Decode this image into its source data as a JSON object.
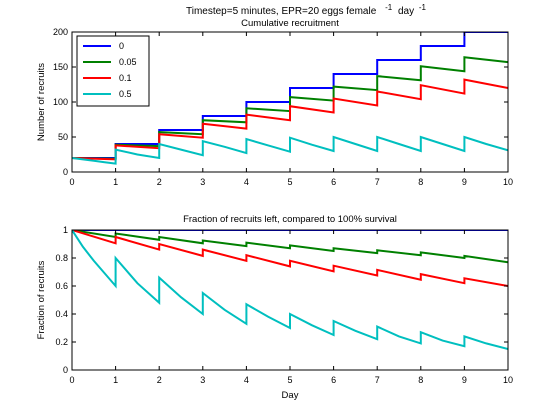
{
  "figure": {
    "title_line1": "Timestep=5 minutes, EPR=20 eggs female",
    "title_superscript1": "-1",
    "title_mid": "day",
    "title_superscript2": "-1"
  },
  "colors": {
    "0": "#0000ff",
    "0.05": "#008000",
    "0.1": "#ff0000",
    "0.5": "#00bfbf"
  },
  "chart_data": [
    {
      "type": "line",
      "title": "Cumulative recruitment",
      "xlabel": "",
      "ylabel": "Number of recruits",
      "xlim": [
        0,
        10
      ],
      "ylim": [
        0,
        200
      ],
      "xticks": [
        "0",
        "1",
        "2",
        "3",
        "4",
        "5",
        "6",
        "7",
        "8",
        "9",
        "10"
      ],
      "yticks": [
        "0",
        "50",
        "100",
        "150",
        "200"
      ],
      "legend": {
        "placement": "top-left",
        "entries": [
          "0",
          "0.05",
          "0.1",
          "0.5"
        ]
      },
      "grid": false,
      "series": [
        {
          "name": "0",
          "color": "#0000ff",
          "points": [
            [
              0,
              20
            ],
            [
              1,
              20
            ],
            [
              1,
              40
            ],
            [
              2,
              40
            ],
            [
              2,
              60
            ],
            [
              3,
              60
            ],
            [
              3,
              80
            ],
            [
              4,
              80
            ],
            [
              4,
              100
            ],
            [
              5,
              100
            ],
            [
              5,
              120
            ],
            [
              6,
              120
            ],
            [
              6,
              140
            ],
            [
              7,
              140
            ],
            [
              7,
              160
            ],
            [
              8,
              160
            ],
            [
              8,
              180
            ],
            [
              9,
              180
            ],
            [
              9,
              200
            ],
            [
              10,
              200
            ]
          ]
        },
        {
          "name": "0.05",
          "color": "#008000",
          "points": [
            [
              0,
              20
            ],
            [
              1,
              19
            ],
            [
              1,
              39
            ],
            [
              2,
              37
            ],
            [
              2,
              57
            ],
            [
              3,
              54
            ],
            [
              3,
              74
            ],
            [
              4,
              71
            ],
            [
              4,
              91
            ],
            [
              5,
              87
            ],
            [
              5,
              107
            ],
            [
              6,
              102
            ],
            [
              6,
              122
            ],
            [
              7,
              117
            ],
            [
              7,
              137
            ],
            [
              8,
              131
            ],
            [
              8,
              151
            ],
            [
              9,
              144
            ],
            [
              9,
              164
            ],
            [
              10,
              157
            ]
          ]
        },
        {
          "name": "0.1",
          "color": "#ff0000",
          "points": [
            [
              0,
              20
            ],
            [
              1,
              18
            ],
            [
              1,
              38
            ],
            [
              2,
              34
            ],
            [
              2,
              54
            ],
            [
              3,
              49
            ],
            [
              3,
              69
            ],
            [
              4,
              62
            ],
            [
              4,
              82
            ],
            [
              5,
              74
            ],
            [
              5,
              94
            ],
            [
              6,
              85
            ],
            [
              6,
              105
            ],
            [
              7,
              95
            ],
            [
              7,
              115
            ],
            [
              8,
              104
            ],
            [
              8,
              124
            ],
            [
              9,
              112
            ],
            [
              9,
              132
            ],
            [
              10,
              120
            ]
          ]
        },
        {
          "name": "0.5",
          "color": "#00bfbf",
          "points": [
            [
              0,
              20
            ],
            [
              0.25,
              18
            ],
            [
              0.5,
              16
            ],
            [
              0.75,
              14
            ],
            [
              1,
              12
            ],
            [
              1,
              32
            ],
            [
              1.5,
              25
            ],
            [
              2,
              20
            ],
            [
              2,
              40
            ],
            [
              2.5,
              32
            ],
            [
              3,
              24
            ],
            [
              3,
              44
            ],
            [
              3.5,
              36
            ],
            [
              4,
              27
            ],
            [
              4,
              47
            ],
            [
              4.5,
              38
            ],
            [
              5,
              29
            ],
            [
              5,
              49
            ],
            [
              5.5,
              39
            ],
            [
              6,
              30
            ],
            [
              6,
              50
            ],
            [
              6.5,
              40
            ],
            [
              7,
              30
            ],
            [
              7,
              50
            ],
            [
              7.5,
              40
            ],
            [
              8,
              30
            ],
            [
              8,
              50
            ],
            [
              8.5,
              40
            ],
            [
              9,
              30
            ],
            [
              9,
              50
            ],
            [
              9.5,
              40
            ],
            [
              10,
              31
            ]
          ]
        }
      ]
    },
    {
      "type": "line",
      "title": "Fraction of recruits left, compared to 100% survival",
      "xlabel": "Day",
      "ylabel": "Fraction of recruits",
      "xlim": [
        0,
        10
      ],
      "ylim": [
        0,
        1
      ],
      "xticks": [
        "0",
        "1",
        "2",
        "3",
        "4",
        "5",
        "6",
        "7",
        "8",
        "9",
        "10"
      ],
      "yticks": [
        "0",
        "0.2",
        "0.4",
        "0.6",
        "0.8",
        "1"
      ],
      "grid": false,
      "series": [
        {
          "name": "0",
          "color": "#0000ff",
          "points": [
            [
              0,
              1
            ],
            [
              10,
              1
            ]
          ]
        },
        {
          "name": "0.05",
          "color": "#008000",
          "points": [
            [
              0,
              1
            ],
            [
              1,
              0.95
            ],
            [
              1,
              0.975
            ],
            [
              2,
              0.93
            ],
            [
              2,
              0.95
            ],
            [
              3,
              0.905
            ],
            [
              3,
              0.925
            ],
            [
              4,
              0.885
            ],
            [
              4,
              0.91
            ],
            [
              5,
              0.87
            ],
            [
              5,
              0.89
            ],
            [
              6,
              0.85
            ],
            [
              6,
              0.87
            ],
            [
              7,
              0.835
            ],
            [
              7,
              0.855
            ],
            [
              8,
              0.82
            ],
            [
              8,
              0.84
            ],
            [
              9,
              0.8
            ],
            [
              9,
              0.815
            ],
            [
              10,
              0.77
            ]
          ]
        },
        {
          "name": "0.1",
          "color": "#ff0000",
          "points": [
            [
              0,
              1
            ],
            [
              1,
              0.905
            ],
            [
              1,
              0.95
            ],
            [
              2,
              0.86
            ],
            [
              2,
              0.9
            ],
            [
              3,
              0.815
            ],
            [
              3,
              0.86
            ],
            [
              4,
              0.78
            ],
            [
              4,
              0.82
            ],
            [
              5,
              0.74
            ],
            [
              5,
              0.78
            ],
            [
              6,
              0.705
            ],
            [
              6,
              0.745
            ],
            [
              7,
              0.675
            ],
            [
              7,
              0.715
            ],
            [
              8,
              0.645
            ],
            [
              8,
              0.685
            ],
            [
              9,
              0.62
            ],
            [
              9,
              0.655
            ],
            [
              10,
              0.6
            ]
          ]
        },
        {
          "name": "0.5",
          "color": "#00bfbf",
          "points": [
            [
              0,
              1
            ],
            [
              0.25,
              0.88
            ],
            [
              0.5,
              0.78
            ],
            [
              0.75,
              0.69
            ],
            [
              1,
              0.6
            ],
            [
              1,
              0.8
            ],
            [
              1.5,
              0.62
            ],
            [
              2,
              0.48
            ],
            [
              2,
              0.66
            ],
            [
              2.5,
              0.52
            ],
            [
              3,
              0.4
            ],
            [
              3,
              0.55
            ],
            [
              3.5,
              0.43
            ],
            [
              4,
              0.33
            ],
            [
              4,
              0.47
            ],
            [
              4.5,
              0.38
            ],
            [
              5,
              0.3
            ],
            [
              5,
              0.4
            ],
            [
              5.5,
              0.32
            ],
            [
              6,
              0.25
            ],
            [
              6,
              0.35
            ],
            [
              6.5,
              0.28
            ],
            [
              7,
              0.22
            ],
            [
              7,
              0.31
            ],
            [
              7.5,
              0.24
            ],
            [
              8,
              0.19
            ],
            [
              8,
              0.27
            ],
            [
              8.5,
              0.21
            ],
            [
              9,
              0.17
            ],
            [
              9,
              0.24
            ],
            [
              9.5,
              0.19
            ],
            [
              10,
              0.15
            ]
          ]
        }
      ]
    }
  ]
}
